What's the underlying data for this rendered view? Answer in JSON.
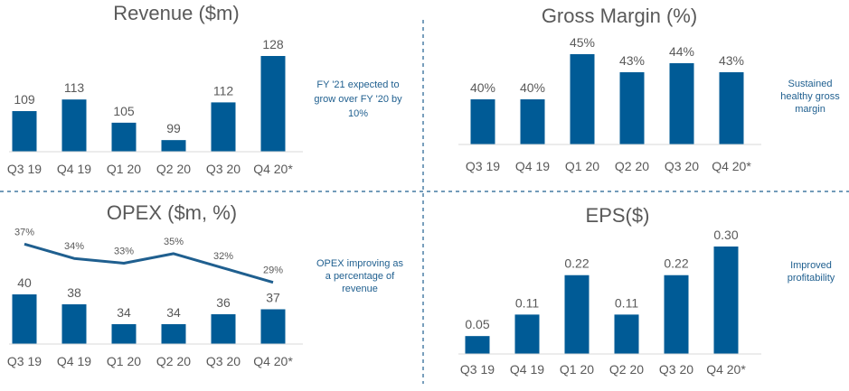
{
  "chart_data": [
    {
      "type": "bar",
      "title": "Revenue ($m)",
      "categories": [
        "Q3 19",
        "Q4 19",
        "Q1 20",
        "Q2 20",
        "Q3 20",
        "Q4 20*"
      ],
      "values": [
        109,
        113,
        105,
        99,
        112,
        128
      ],
      "value_labels": [
        "109",
        "113",
        "105",
        "99",
        "112",
        "128"
      ],
      "ylim": [
        95,
        130
      ],
      "annotation": [
        "FY '21 expected to",
        "grow over FY '20 by",
        "10%"
      ],
      "grid": false,
      "color": "#005b96"
    },
    {
      "type": "bar",
      "title": "Gross Margin (%)",
      "categories": [
        "Q3 19",
        "Q4 19",
        "Q1 20",
        "Q2 20",
        "Q3 20",
        "Q4 20*"
      ],
      "values": [
        40,
        40,
        45,
        43,
        44,
        43
      ],
      "value_labels": [
        "40%",
        "40%",
        "45%",
        "43%",
        "44%",
        "43%"
      ],
      "ylim": [
        35,
        46
      ],
      "annotation": [
        "Sustained",
        "healthy gross",
        "margin"
      ],
      "grid": false,
      "color": "#005b96"
    },
    {
      "type": "bar",
      "title": "OPEX ($m, %)",
      "categories": [
        "Q3 19",
        "Q4 19",
        "Q1 20",
        "Q2 20",
        "Q3 20",
        "Q4 20*"
      ],
      "values": [
        40,
        38,
        34,
        34,
        36,
        37
      ],
      "value_labels": [
        "40",
        "38",
        "34",
        "34",
        "36",
        "37"
      ],
      "ylim": [
        30,
        42
      ],
      "series": [
        {
          "type": "line",
          "values": [
            37,
            34,
            33,
            35,
            32,
            29
          ],
          "value_labels": [
            "37%",
            "34%",
            "33%",
            "35%",
            "32%",
            "29%"
          ],
          "ylim": [
            28,
            38
          ]
        }
      ],
      "annotation": [
        "OPEX improving as",
        "a percentage of",
        "revenue"
      ],
      "grid": false,
      "color": "#005b96"
    },
    {
      "type": "bar",
      "title": "EPS($)",
      "categories": [
        "Q3 19",
        "Q4 19",
        "Q1 20",
        "Q2 20",
        "Q3 20",
        "Q4 20*"
      ],
      "values": [
        0.05,
        0.11,
        0.22,
        0.11,
        0.22,
        0.3
      ],
      "value_labels": [
        "0.05",
        "0.11",
        "0.22",
        "0.11",
        "0.22",
        "0.30"
      ],
      "ylim": [
        0,
        0.32
      ],
      "annotation": [
        "Improved",
        "profitability"
      ],
      "grid": false,
      "color": "#005b96"
    }
  ]
}
